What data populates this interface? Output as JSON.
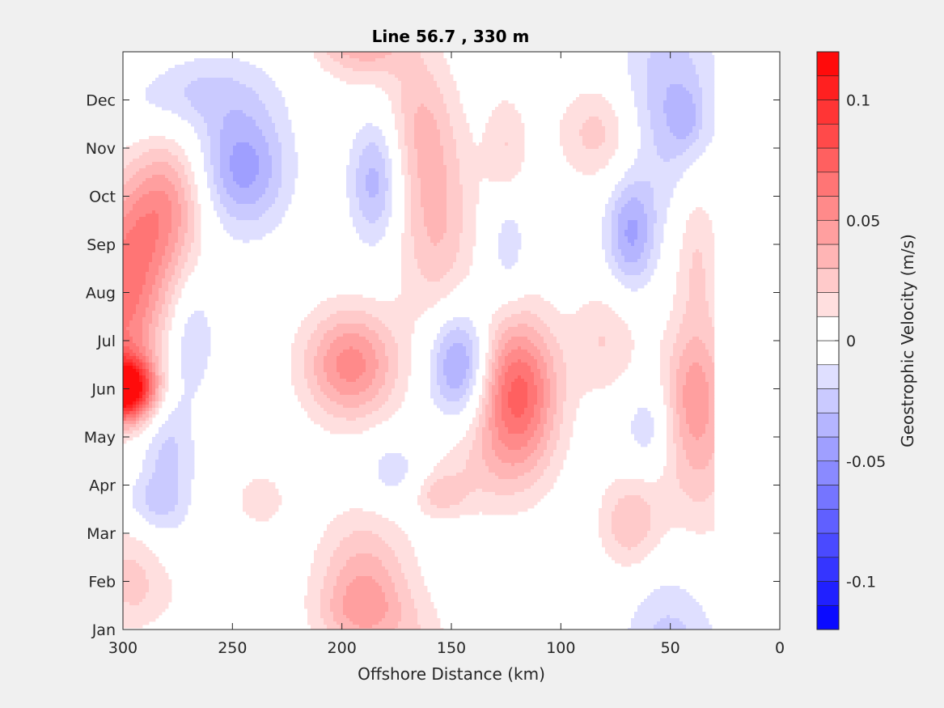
{
  "chart_data": {
    "type": "heatmap",
    "title": "Line 56.7 , 330 m",
    "xlabel": "Offshore Distance (km)",
    "ylabel": "",
    "x_axis": {
      "range": [
        300,
        0
      ],
      "reversed": true,
      "tick_values": [
        300,
        250,
        200,
        150,
        100,
        50,
        0
      ],
      "tick_labels": [
        "300",
        "250",
        "200",
        "150",
        "100",
        "50",
        "0"
      ]
    },
    "y_axis": {
      "range": [
        0,
        12
      ],
      "tick_values": [
        0,
        1,
        2,
        3,
        4,
        5,
        6,
        7,
        8,
        9,
        10,
        11
      ],
      "tick_labels": [
        "Jan",
        "Feb",
        "Mar",
        "Apr",
        "May",
        "Jun",
        "Jul",
        "Aug",
        "Sep",
        "Oct",
        "Nov",
        "Dec"
      ]
    },
    "colorbar": {
      "label": "Geostrophic Velocity (m/s)",
      "range": [
        -0.12,
        0.12
      ],
      "step": 0.01,
      "tick_values": [
        -0.1,
        -0.05,
        0,
        0.05,
        0.1
      ],
      "tick_labels": [
        "-0.1",
        "-0.05",
        "0",
        "0.05",
        "0.1"
      ],
      "negative_color": "#0000ff",
      "positive_color": "#ff0000",
      "zero_color": "#ffffff"
    },
    "data_extent_x": [
      30,
      300
    ],
    "features": [
      {
        "x": 300,
        "month": 5.0,
        "sx": 10,
        "sy": 0.45,
        "amp": 0.13
      },
      {
        "x": 300,
        "month": 6.3,
        "sx": 14,
        "sy": 1.2,
        "amp": 0.05
      },
      {
        "x": 295,
        "month": 8.0,
        "sx": 16,
        "sy": 1.0,
        "amp": 0.04
      },
      {
        "x": 280,
        "month": 9.0,
        "sx": 12,
        "sy": 0.9,
        "amp": 0.035
      },
      {
        "x": 293,
        "month": 1.0,
        "sx": 16,
        "sy": 1.0,
        "amp": 0.025
      },
      {
        "x": 237,
        "month": 2.7,
        "sx": 8,
        "sy": 0.4,
        "amp": 0.018
      },
      {
        "x": 196,
        "month": 5.5,
        "sx": 15,
        "sy": 0.8,
        "amp": 0.055
      },
      {
        "x": 190,
        "month": 1.0,
        "sx": 15,
        "sy": 1.0,
        "amp": 0.035
      },
      {
        "x": 190,
        "month": 0.3,
        "sx": 15,
        "sy": 0.5,
        "amp": 0.02
      },
      {
        "x": 157,
        "month": 8.6,
        "sx": 12,
        "sy": 1.6,
        "amp": 0.032
      },
      {
        "x": 165,
        "month": 10.7,
        "sx": 10,
        "sy": 1.0,
        "amp": 0.02
      },
      {
        "x": 155,
        "month": 2.8,
        "sx": 8,
        "sy": 0.3,
        "amp": 0.02
      },
      {
        "x": 140,
        "month": 3.3,
        "sx": 20,
        "sy": 0.7,
        "amp": 0.015
      },
      {
        "x": 120,
        "month": 4.9,
        "sx": 13,
        "sy": 1.1,
        "amp": 0.075
      },
      {
        "x": 125,
        "month": 10.0,
        "sx": 7,
        "sy": 0.8,
        "amp": 0.02
      },
      {
        "x": 83,
        "month": 10.3,
        "sx": 13,
        "sy": 0.7,
        "amp": 0.025
      },
      {
        "x": 80,
        "month": 6.0,
        "sx": 11,
        "sy": 0.8,
        "amp": 0.02
      },
      {
        "x": 68,
        "month": 2.2,
        "sx": 10,
        "sy": 0.7,
        "amp": 0.03
      },
      {
        "x": 38,
        "month": 8.0,
        "sx": 7,
        "sy": 1.2,
        "amp": 0.02
      },
      {
        "x": 37,
        "month": 4.3,
        "sx": 12,
        "sy": 1.6,
        "amp": 0.035
      },
      {
        "x": 40,
        "month": 5.0,
        "sx": 8,
        "sy": 0.8,
        "amp": 0.015
      },
      {
        "x": 245,
        "month": 9.6,
        "sx": 14,
        "sy": 0.9,
        "amp": -0.045
      },
      {
        "x": 270,
        "month": 11.2,
        "sx": 25,
        "sy": 0.6,
        "amp": -0.022
      },
      {
        "x": 280,
        "month": 3.5,
        "sx": 9,
        "sy": 1.5,
        "amp": -0.025
      },
      {
        "x": 268,
        "month": 6.1,
        "sx": 7,
        "sy": 0.8,
        "amp": -0.02
      },
      {
        "x": 290,
        "month": 2.6,
        "sx": 10,
        "sy": 0.4,
        "amp": -0.015
      },
      {
        "x": 185,
        "month": 9.3,
        "sx": 8,
        "sy": 0.9,
        "amp": -0.035
      },
      {
        "x": 176,
        "month": 3.3,
        "sx": 10,
        "sy": 0.5,
        "amp": -0.02
      },
      {
        "x": 146,
        "month": 5.5,
        "sx": 10,
        "sy": 0.8,
        "amp": -0.05
      },
      {
        "x": 124,
        "month": 8.0,
        "sx": 6,
        "sy": 0.8,
        "amp": -0.018
      },
      {
        "x": 68,
        "month": 8.2,
        "sx": 8,
        "sy": 0.8,
        "amp": -0.04
      },
      {
        "x": 60,
        "month": 4.2,
        "sx": 8,
        "sy": 0.6,
        "amp": -0.02
      },
      {
        "x": 50,
        "month": 11.0,
        "sx": 15,
        "sy": 1.5,
        "amp": -0.03
      },
      {
        "x": 43,
        "month": 10.6,
        "sx": 5,
        "sy": 0.4,
        "amp": -0.015
      }
    ]
  }
}
